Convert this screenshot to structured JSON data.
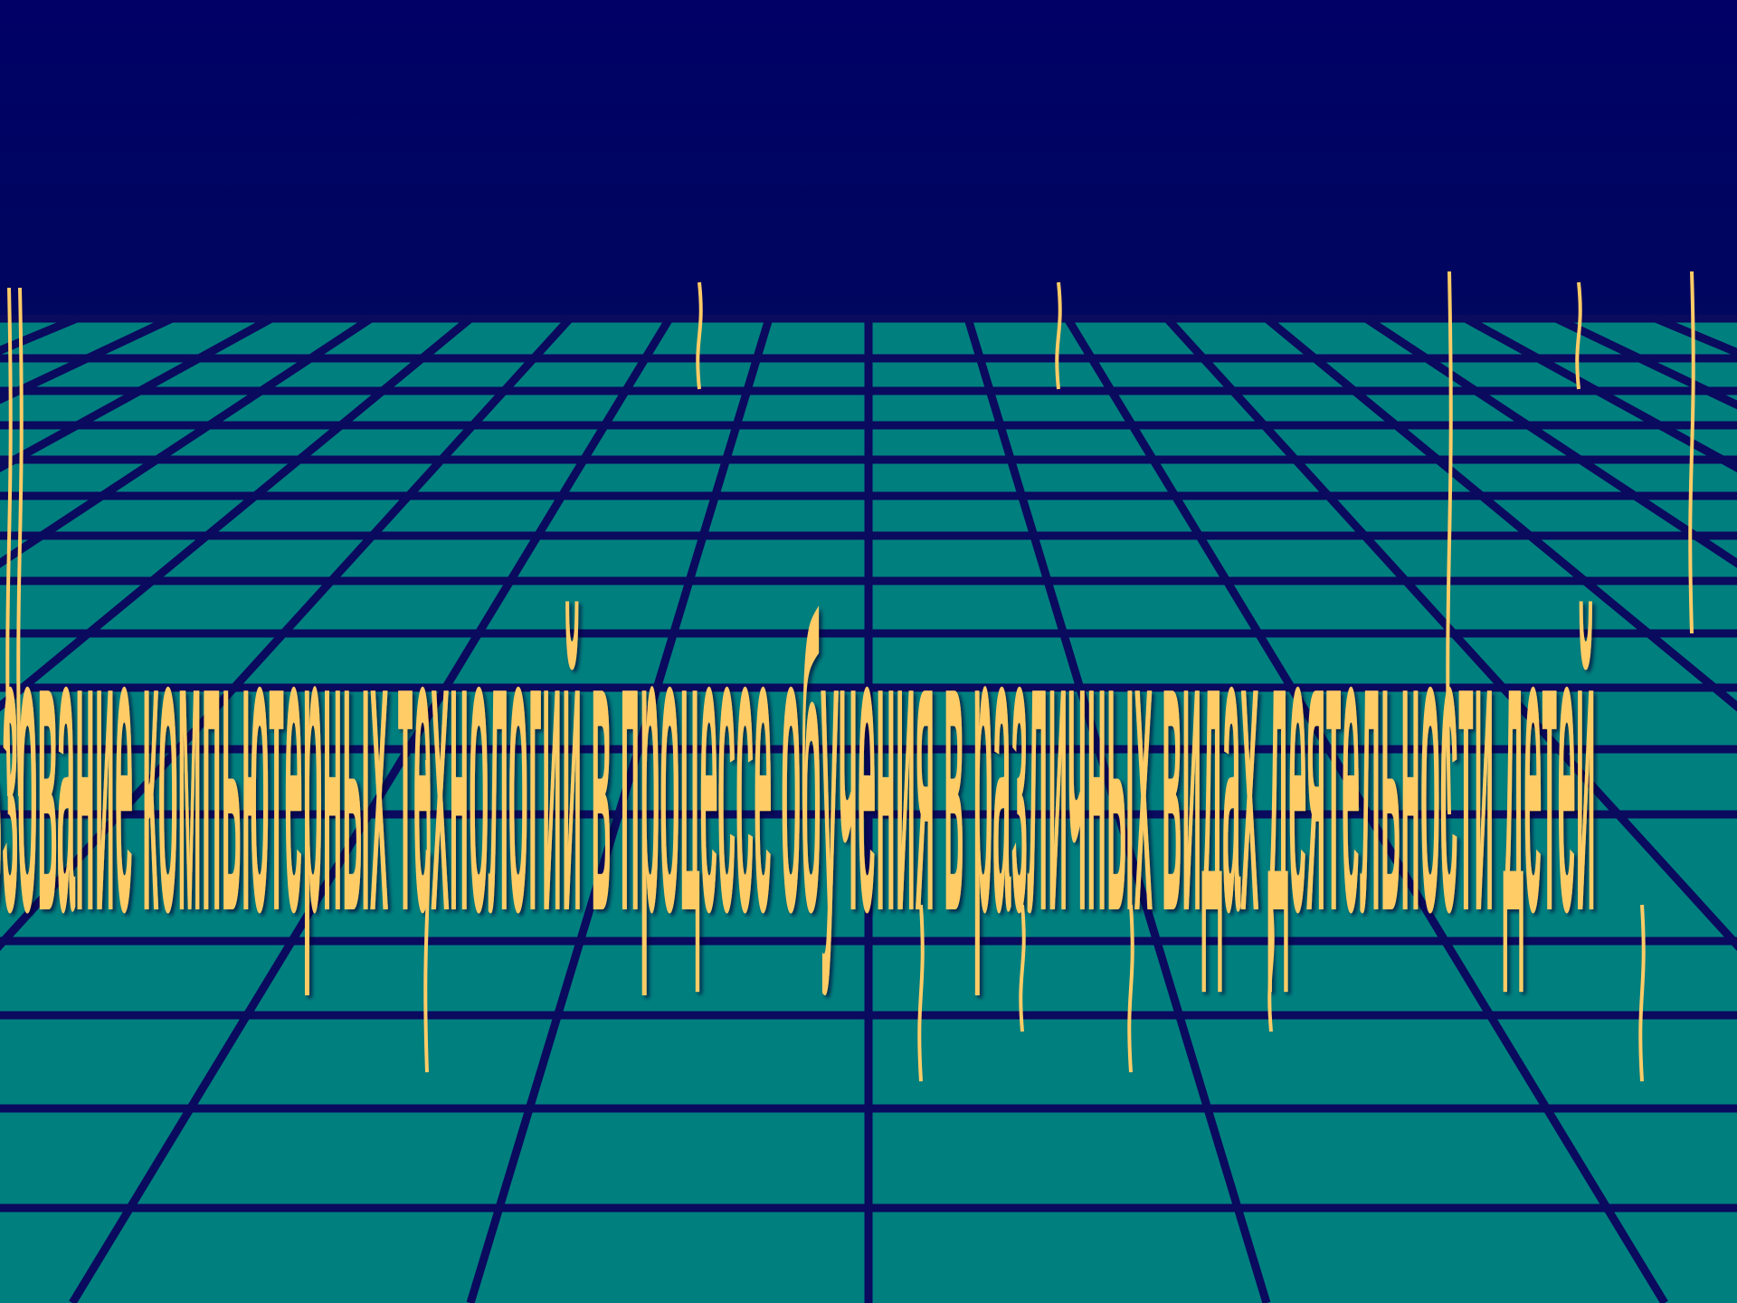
{
  "scene": {
    "sky_color_top": "#000066",
    "sky_color_bottom": "#00075e",
    "floor_color": "#007f7f",
    "grid_line_color": "#0a0a5e",
    "text_color": "#ffcc66",
    "text_shadow_color": "#000033"
  },
  "slide_title": {
    "text": "Использование компьютерных технологий в процессе обучения в различных видах деятельности детей",
    "style": "stretched-wave-wordart"
  }
}
